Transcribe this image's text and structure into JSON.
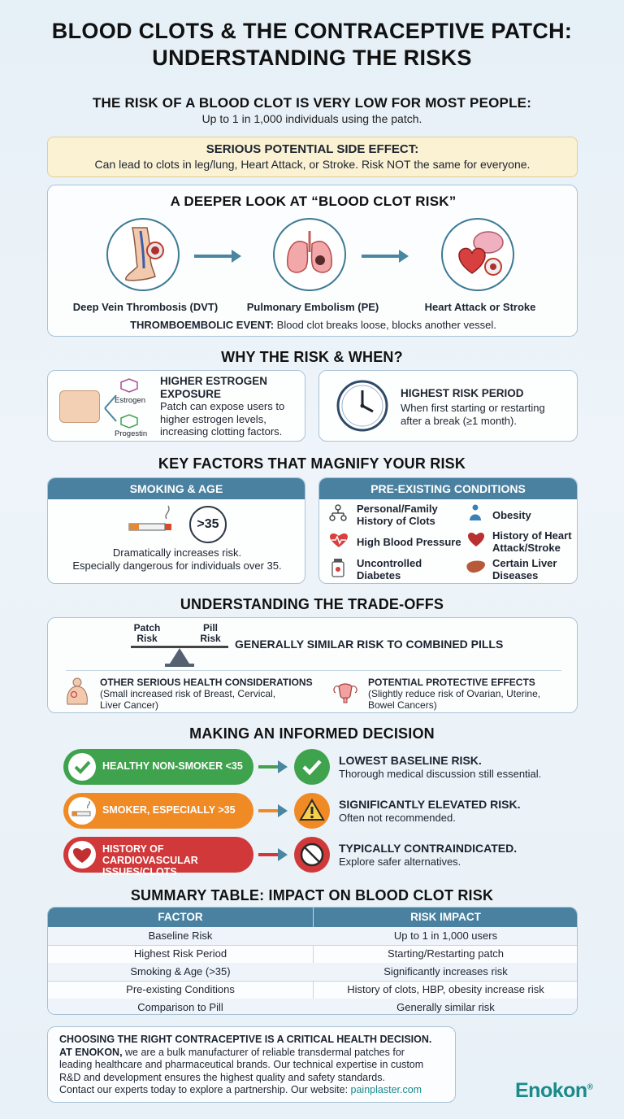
{
  "header": {
    "title_line1": "BLOOD CLOTS & THE CONTRACEPTIVE PATCH:",
    "title_line2": "UNDERSTANDING THE RISKS"
  },
  "intro": {
    "heading": "THE RISK OF A BLOOD CLOT IS VERY LOW FOR MOST PEOPLE:",
    "text": "Up to 1 in 1,000 individuals using the patch."
  },
  "warning": {
    "title": "SERIOUS POTENTIAL SIDE EFFECT:",
    "text": "Can lead to clots in leg/lung, Heart Attack, or Stroke. Risk NOT the same for everyone."
  },
  "deeper_look": {
    "title": "A DEEPER LOOK AT “BLOOD CLOT RISK”",
    "stages": [
      {
        "label": "Deep Vein Thrombosis (DVT)",
        "icon": "leg-vein-icon"
      },
      {
        "label": "Pulmonary Embolism (PE)",
        "icon": "lungs-icon"
      },
      {
        "label": "Heart Attack or Stroke",
        "icon": "heart-brain-icon"
      }
    ],
    "event_term": "THROMBOEMBOLIC EVENT:",
    "event_text": "Blood clot breaks loose, blocks another vessel."
  },
  "why": {
    "title": "WHY THE RISK & WHEN?",
    "estrogen": {
      "title_line1": "HIGHER ESTROGEN",
      "title_line2": "EXPOSURE",
      "text_line1": "Patch can expose users to",
      "text_line2": "higher estrogen levels,",
      "text_line3": "increasing clotting factors.",
      "label_estrogen": "Estrogen",
      "label_progestin": "Progestin"
    },
    "period": {
      "title": "HIGHEST RISK PERIOD",
      "text_line1": "When first starting or restarting",
      "text_line2": "after a break (≥1 month)."
    }
  },
  "factors": {
    "title": "KEY FACTORS THAT MAGNIFY YOUR RISK",
    "smoking": {
      "header": "SMOKING & AGE",
      "age_badge": ">35",
      "text_line1": "Dramatically increases risk.",
      "text_line2": "Especially dangerous for individuals over 35."
    },
    "conditions": {
      "header": "PRE-EXISTING CONDITIONS",
      "items": [
        {
          "line1": "Personal/Family",
          "line2": "History of Clots",
          "icon": "family-tree-icon"
        },
        {
          "line1": "Obesity",
          "line2": "",
          "icon": "person-icon"
        },
        {
          "line1": "High Blood Pressure",
          "line2": "",
          "icon": "heart-pulse-icon"
        },
        {
          "line1": "History of Heart",
          "line2": "Attack/Stroke",
          "icon": "heart-icon"
        },
        {
          "line1": "Uncontrolled",
          "line2": "Diabetes",
          "icon": "medicine-bottle-icon"
        },
        {
          "line1": "Certain Liver",
          "line2": "Diseases",
          "icon": "liver-icon"
        }
      ]
    }
  },
  "tradeoffs": {
    "title": "UNDERSTANDING THE TRADE-OFFS",
    "patch_label_line1": "Patch",
    "patch_label_line2": "Risk",
    "pill_label_line1": "Pill",
    "pill_label_line2": "Risk",
    "similar": "GENERALLY SIMILAR RISK TO COMBINED PILLS",
    "other_title": "OTHER SERIOUS HEALTH CONSIDERATIONS",
    "other_line1": "(Small increased risk of Breast, Cervical,",
    "other_line2": "Liver Cancer)",
    "protective_title": "POTENTIAL PROTECTIVE EFFECTS",
    "protective_line1": "(Slightly reduce risk of Ovarian, Uterine,",
    "protective_line2": "Bowel Cancers)"
  },
  "decision": {
    "title": "MAKING AN INFORMED DECISION",
    "rows": [
      {
        "pill_line1": "HEALTHY NON-SMOKER <35",
        "pill_line2": "",
        "color": "#3fa34d",
        "result": "LOWEST BASELINE RISK.",
        "detail": "Thorough medical discussion still essential."
      },
      {
        "pill_line1": "SMOKER, ESPECIALLY >35",
        "pill_line2": "",
        "color": "#f08a24",
        "result": "SIGNIFICANTLY ELEVATED RISK.",
        "detail": "Often not recommended."
      },
      {
        "pill_line1": "HISTORY OF CARDIOVASCULAR",
        "pill_line2": "ISSUES/CLOTS",
        "color": "#d0383a",
        "result": "TYPICALLY CONTRAINDICATED.",
        "detail": "Explore safer alternatives."
      }
    ]
  },
  "summary": {
    "title": "SUMMARY TABLE: IMPACT ON BLOOD CLOT RISK",
    "headers": [
      "FACTOR",
      "RISK IMPACT"
    ],
    "rows": [
      [
        "Baseline Risk",
        "Up to 1 in 1,000 users"
      ],
      [
        "Highest Risk Period",
        "Starting/Restarting patch"
      ],
      [
        "Smoking & Age (>35)",
        "Significantly increases risk"
      ],
      [
        "Pre-existing Conditions",
        "History of clots, HBP, obesity increase risk"
      ],
      [
        "Comparison to Pill",
        "Generally similar risk"
      ]
    ]
  },
  "footer": {
    "line1": "CHOOSING THE RIGHT CONTRACEPTIVE IS A CRITICAL HEALTH DECISION.",
    "brand_lead": "AT ENOKON,",
    "line2_rest": " we are a bulk manufacturer of reliable transdermal patches for",
    "line3": "leading healthcare and pharmaceutical brands. Our technical expertise in custom",
    "line4": "R&D and development ensures the highest quality and safety standards.",
    "line5": "Contact our experts today to explore a partnership. Our website: ",
    "website": "painplaster.com",
    "logo": "Enokon",
    "logo_mark": "®"
  },
  "colors": {
    "accent_blue": "#4a80a0",
    "green": "#3fa34d",
    "orange": "#f08a24",
    "red": "#d0383a"
  }
}
